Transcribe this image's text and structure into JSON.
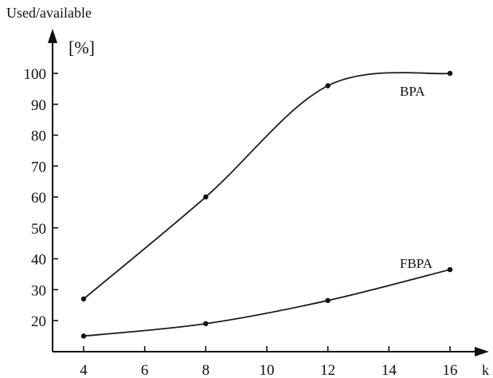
{
  "chart_data": {
    "type": "line",
    "ylabel": "Used/available",
    "yunit": "[%]",
    "xlabel": "k",
    "x": [
      4,
      8,
      12,
      16
    ],
    "xticks": [
      4,
      6,
      8,
      10,
      12,
      14,
      16
    ],
    "yticks": [
      20,
      30,
      40,
      50,
      60,
      70,
      80,
      90,
      100
    ],
    "grid": false,
    "legend": "inline labels",
    "series": [
      {
        "name": "BPA",
        "values": [
          27,
          60,
          96,
          100
        ]
      },
      {
        "name": "FBPA",
        "values": [
          15,
          19,
          26.5,
          36.5
        ]
      }
    ]
  }
}
